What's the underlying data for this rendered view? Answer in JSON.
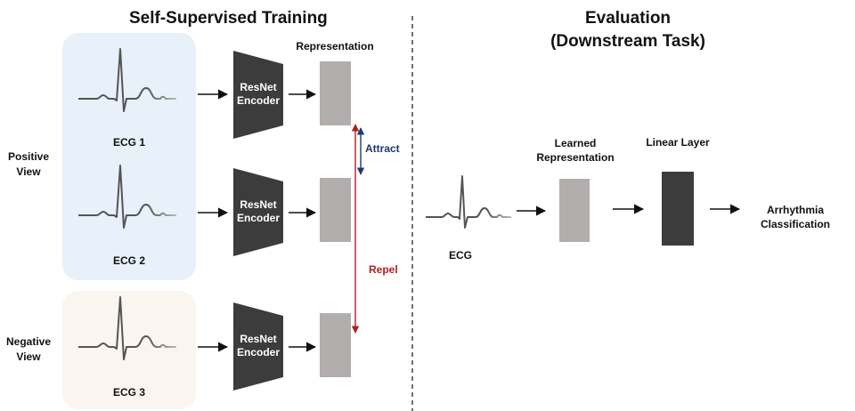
{
  "training": {
    "title": "Self-Supervised Training",
    "representation_label": "Representation",
    "positive_view_label": "Positive\nView",
    "negative_view_label": "Negative\nView",
    "encoder_label": "ResNet\nEncoder",
    "ecg_labels": [
      "ECG 1",
      "ECG 2",
      "ECG 3"
    ],
    "attract_label": "Attract",
    "repel_label": "Repel"
  },
  "evaluation": {
    "title_line1": "Evaluation",
    "title_line2": "(Downstream Task)",
    "ecg_label": "ECG",
    "learned_representation_label": "Learned\nRepresentation",
    "linear_layer_label": "Linear Layer",
    "output_label": "Arrhythmia\nClassification"
  },
  "colors": {
    "positive_panel": "#E8F0F9",
    "negative_panel": "#FBF5EF",
    "encoder": "#3C3C3C",
    "representation": "#B2AEAE",
    "linear_layer": "#3C3C3C",
    "attract": "#1F3A6E",
    "repel": "#B01E1E"
  }
}
